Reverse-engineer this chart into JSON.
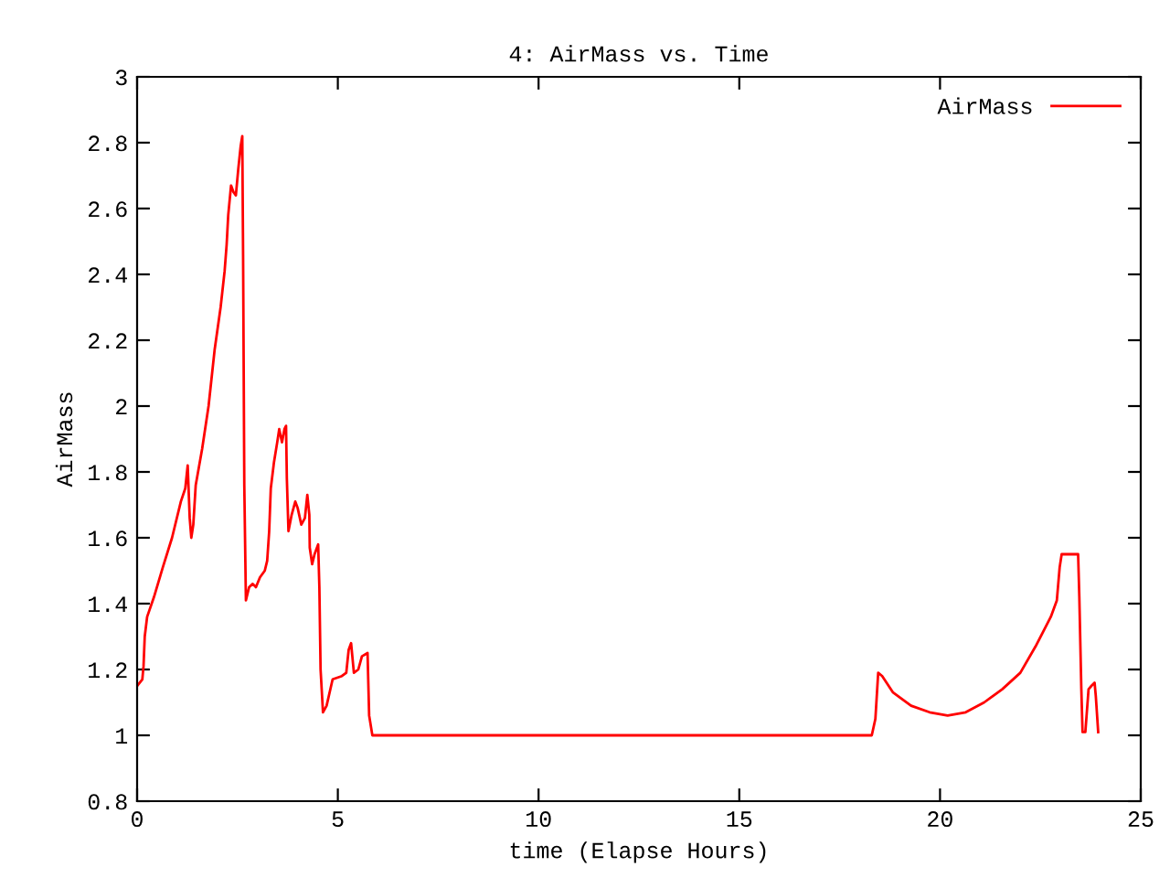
{
  "chart_data": {
    "type": "line",
    "title": "4: AirMass vs. Time",
    "xlabel": "time (Elapse Hours)",
    "ylabel": "AirMass",
    "xlim": [
      0,
      25
    ],
    "xticks": [
      0,
      5,
      10,
      15,
      20,
      25
    ],
    "ylim": [
      0.8,
      3
    ],
    "yticks": [
      0.8,
      1,
      1.2,
      1.4,
      1.6,
      1.8,
      2,
      2.2,
      2.4,
      2.6,
      2.8,
      3
    ],
    "grid": false,
    "legend": "top right",
    "marker": "none",
    "line_style": "solid",
    "series": [
      {
        "name": "AirMass",
        "color": "#ff0000",
        "x": [
          0,
          0.13,
          0.16,
          0.19,
          0.25,
          0.42,
          0.64,
          0.87,
          1.09,
          1.2,
          1.26,
          1.31,
          1.35,
          1.4,
          1.46,
          1.62,
          1.78,
          1.93,
          2.08,
          2.18,
          2.23,
          2.27,
          2.34,
          2.4,
          2.46,
          2.52,
          2.58,
          2.62,
          2.64,
          2.67,
          2.71,
          2.79,
          2.88,
          2.96,
          3.06,
          3.18,
          3.24,
          3.29,
          3.33,
          3.41,
          3.49,
          3.54,
          3.61,
          3.67,
          3.71,
          3.73,
          3.77,
          3.85,
          3.94,
          4.0,
          4.09,
          4.18,
          4.24,
          4.29,
          4.3,
          4.36,
          4.42,
          4.51,
          4.54,
          4.57,
          4.63,
          4.72,
          4.87,
          5.1,
          5.21,
          5.27,
          5.33,
          5.4,
          5.51,
          5.6,
          5.74,
          5.78,
          5.86,
          18.3,
          18.39,
          18.46,
          18.56,
          18.83,
          19.28,
          19.74,
          20.19,
          20.64,
          21.1,
          21.55,
          22.0,
          22.38,
          22.76,
          22.91,
          22.98,
          23.03,
          23.44,
          23.47,
          23.52,
          23.55,
          23.62,
          23.7,
          23.77,
          23.85,
          23.88,
          23.94
        ],
        "values": [
          1.15,
          1.17,
          1.21,
          1.3,
          1.36,
          1.42,
          1.51,
          1.6,
          1.71,
          1.75,
          1.82,
          1.66,
          1.6,
          1.64,
          1.76,
          1.87,
          2.0,
          2.17,
          2.3,
          2.41,
          2.49,
          2.58,
          2.67,
          2.65,
          2.64,
          2.72,
          2.79,
          2.82,
          2.46,
          1.76,
          1.41,
          1.45,
          1.46,
          1.45,
          1.48,
          1.5,
          1.53,
          1.62,
          1.75,
          1.83,
          1.89,
          1.93,
          1.89,
          1.93,
          1.94,
          1.78,
          1.62,
          1.67,
          1.71,
          1.69,
          1.64,
          1.66,
          1.73,
          1.67,
          1.57,
          1.52,
          1.55,
          1.58,
          1.45,
          1.2,
          1.07,
          1.09,
          1.17,
          1.18,
          1.19,
          1.26,
          1.28,
          1.19,
          1.2,
          1.24,
          1.25,
          1.06,
          1.0,
          1.0,
          1.05,
          1.19,
          1.18,
          1.13,
          1.09,
          1.07,
          1.06,
          1.07,
          1.1,
          1.14,
          1.19,
          1.27,
          1.36,
          1.41,
          1.51,
          1.55,
          1.55,
          1.42,
          1.14,
          1.01,
          1.01,
          1.14,
          1.15,
          1.16,
          1.12,
          1.01
        ]
      }
    ]
  }
}
